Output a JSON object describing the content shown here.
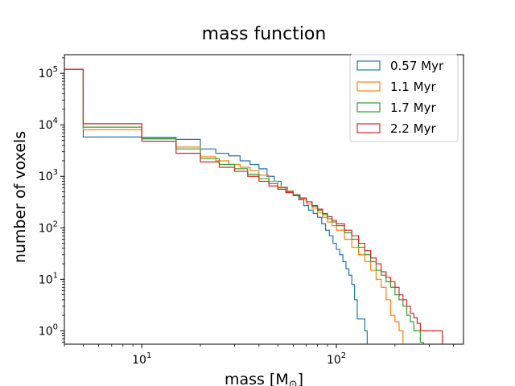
{
  "chart_data": {
    "type": "histogram-step",
    "title": "mass function",
    "xlabel": "mass [M",
    "xlabel_sub": "⊙",
    "xlabel_close": "]",
    "ylabel": "number of voxels",
    "xscale": "log",
    "yscale": "log",
    "xlim": [
      4.0,
      450
    ],
    "ylim": [
      0.55,
      230000
    ],
    "x_ticks": [
      {
        "value": 10,
        "base": "10",
        "exp": "1"
      },
      {
        "value": 100,
        "base": "10",
        "exp": "2"
      }
    ],
    "y_ticks": [
      {
        "value": 1,
        "base": "10",
        "exp": "0"
      },
      {
        "value": 10,
        "base": "10",
        "exp": "1"
      },
      {
        "value": 100,
        "base": "10",
        "exp": "2"
      },
      {
        "value": 1000,
        "base": "10",
        "exp": "3"
      },
      {
        "value": 10000,
        "base": "10",
        "exp": "4"
      },
      {
        "value": 100000,
        "base": "10",
        "exp": "5"
      }
    ],
    "legend_position": "top-right",
    "series": [
      {
        "name": "0.57 Myr",
        "color": "#1f77b4",
        "edges": [
          0,
          5,
          10,
          15,
          20,
          24,
          28,
          32,
          36,
          40,
          44,
          48,
          52,
          56,
          60,
          64,
          68,
          72,
          76,
          80,
          84,
          88,
          92,
          96,
          100,
          104,
          108,
          112,
          116,
          120,
          124,
          128,
          132,
          136,
          140,
          144,
          148,
          152,
          156
        ],
        "values": [
          120000,
          5800,
          5700,
          5200,
          3400,
          2800,
          2500,
          2000,
          1700,
          1400,
          1000,
          800,
          620,
          520,
          420,
          350,
          270,
          220,
          190,
          160,
          120,
          90,
          70,
          50,
          38,
          30,
          22,
          16,
          12,
          8,
          4,
          1.7,
          1.7,
          1.7,
          1,
          0.3,
          0.3,
          0.3
        ]
      },
      {
        "name": "1.1 Myr",
        "color": "#ff7f0e",
        "edges": [
          0,
          5,
          10,
          15,
          20,
          24,
          28,
          32,
          36,
          40,
          45,
          50,
          55,
          60,
          65,
          70,
          75,
          80,
          85,
          90,
          95,
          100,
          110,
          120,
          130,
          140,
          150,
          160,
          170,
          180,
          190,
          200,
          210,
          220,
          230,
          240
        ],
        "values": [
          120000,
          8000,
          5300,
          3700,
          2400,
          2000,
          1700,
          1500,
          1300,
          1050,
          800,
          620,
          520,
          430,
          360,
          290,
          240,
          200,
          160,
          130,
          110,
          90,
          60,
          42,
          30,
          22,
          15,
          10,
          7,
          4,
          2,
          1.5,
          1,
          0.3,
          0.3
        ]
      },
      {
        "name": "1.7 Myr",
        "color": "#2ca02c",
        "edges": [
          0,
          5,
          10,
          15,
          20,
          25,
          30,
          35,
          40,
          45,
          50,
          55,
          60,
          65,
          70,
          75,
          80,
          85,
          90,
          95,
          100,
          110,
          120,
          130,
          140,
          150,
          160,
          170,
          180,
          190,
          200,
          210,
          220,
          230,
          240,
          250,
          260,
          270,
          280,
          290
        ],
        "values": [
          120000,
          9000,
          5400,
          3400,
          2200,
          1700,
          1400,
          1100,
          900,
          720,
          600,
          500,
          440,
          380,
          320,
          260,
          220,
          180,
          150,
          130,
          110,
          80,
          60,
          42,
          30,
          22,
          15,
          12,
          9,
          7,
          5,
          4,
          3,
          2,
          1.5,
          1,
          1,
          0.6,
          0.3
        ]
      },
      {
        "name": "2.2 Myr",
        "color": "#d62728",
        "edges": [
          0,
          5,
          10,
          15,
          20,
          25,
          30,
          35,
          40,
          45,
          50,
          55,
          60,
          65,
          70,
          75,
          80,
          85,
          90,
          95,
          100,
          110,
          120,
          130,
          140,
          150,
          160,
          170,
          180,
          190,
          200,
          210,
          220,
          230,
          240,
          250,
          260,
          270,
          280,
          290,
          300,
          310,
          320,
          330,
          340,
          350
        ],
        "values": [
          120000,
          10500,
          4800,
          2800,
          1900,
          1500,
          1250,
          1000,
          800,
          650,
          560,
          480,
          430,
          380,
          320,
          270,
          230,
          190,
          165,
          140,
          120,
          90,
          70,
          50,
          36,
          26,
          20,
          14,
          11,
          9,
          7,
          5,
          4,
          3,
          2.2,
          1.8,
          1.4,
          1,
          1,
          1,
          1,
          1,
          1,
          1,
          1
        ]
      }
    ]
  }
}
